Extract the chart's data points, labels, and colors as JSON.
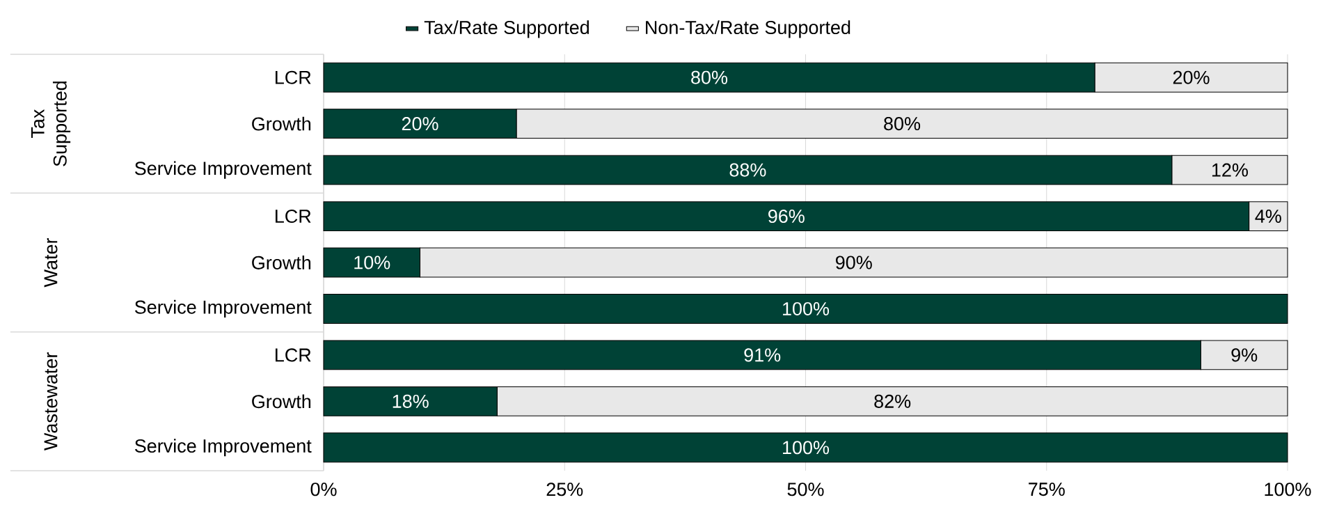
{
  "chart_data": {
    "type": "bar",
    "orientation": "horizontal",
    "stacked": true,
    "categories": [
      "LCR",
      "Growth",
      "Service Improvement",
      "LCR",
      "Growth",
      "Service Improvement",
      "LCR",
      "Growth",
      "Service Improvement"
    ],
    "series": [
      {
        "name": "Tax/Rate Supported",
        "color": "#004236",
        "values": [
          80,
          20,
          88,
          96,
          10,
          100,
          91,
          18,
          100
        ],
        "value_labels": [
          "80%",
          "20%",
          "88%",
          "96%",
          "10%",
          "100%",
          "91%",
          "18%",
          "100%"
        ]
      },
      {
        "name": "Non-Tax/Rate Supported",
        "color": "#e8e8e8",
        "values": [
          20,
          80,
          12,
          4,
          90,
          0,
          9,
          82,
          0
        ],
        "value_labels": [
          "20%",
          "80%",
          "12%",
          "4%",
          "90%",
          null,
          "9%",
          "82%",
          null
        ]
      }
    ],
    "xlim": [
      0,
      100
    ],
    "xticks": [
      {
        "value": 0,
        "label": "0%"
      },
      {
        "value": 25,
        "label": "25%"
      },
      {
        "value": 50,
        "label": "50%"
      },
      {
        "value": 75,
        "label": "75%"
      },
      {
        "value": 100,
        "label": "100%"
      }
    ],
    "grid": "x",
    "legend": "top",
    "annotations": [
      "Tax Supported",
      "Water",
      "Wastewater"
    ]
  }
}
